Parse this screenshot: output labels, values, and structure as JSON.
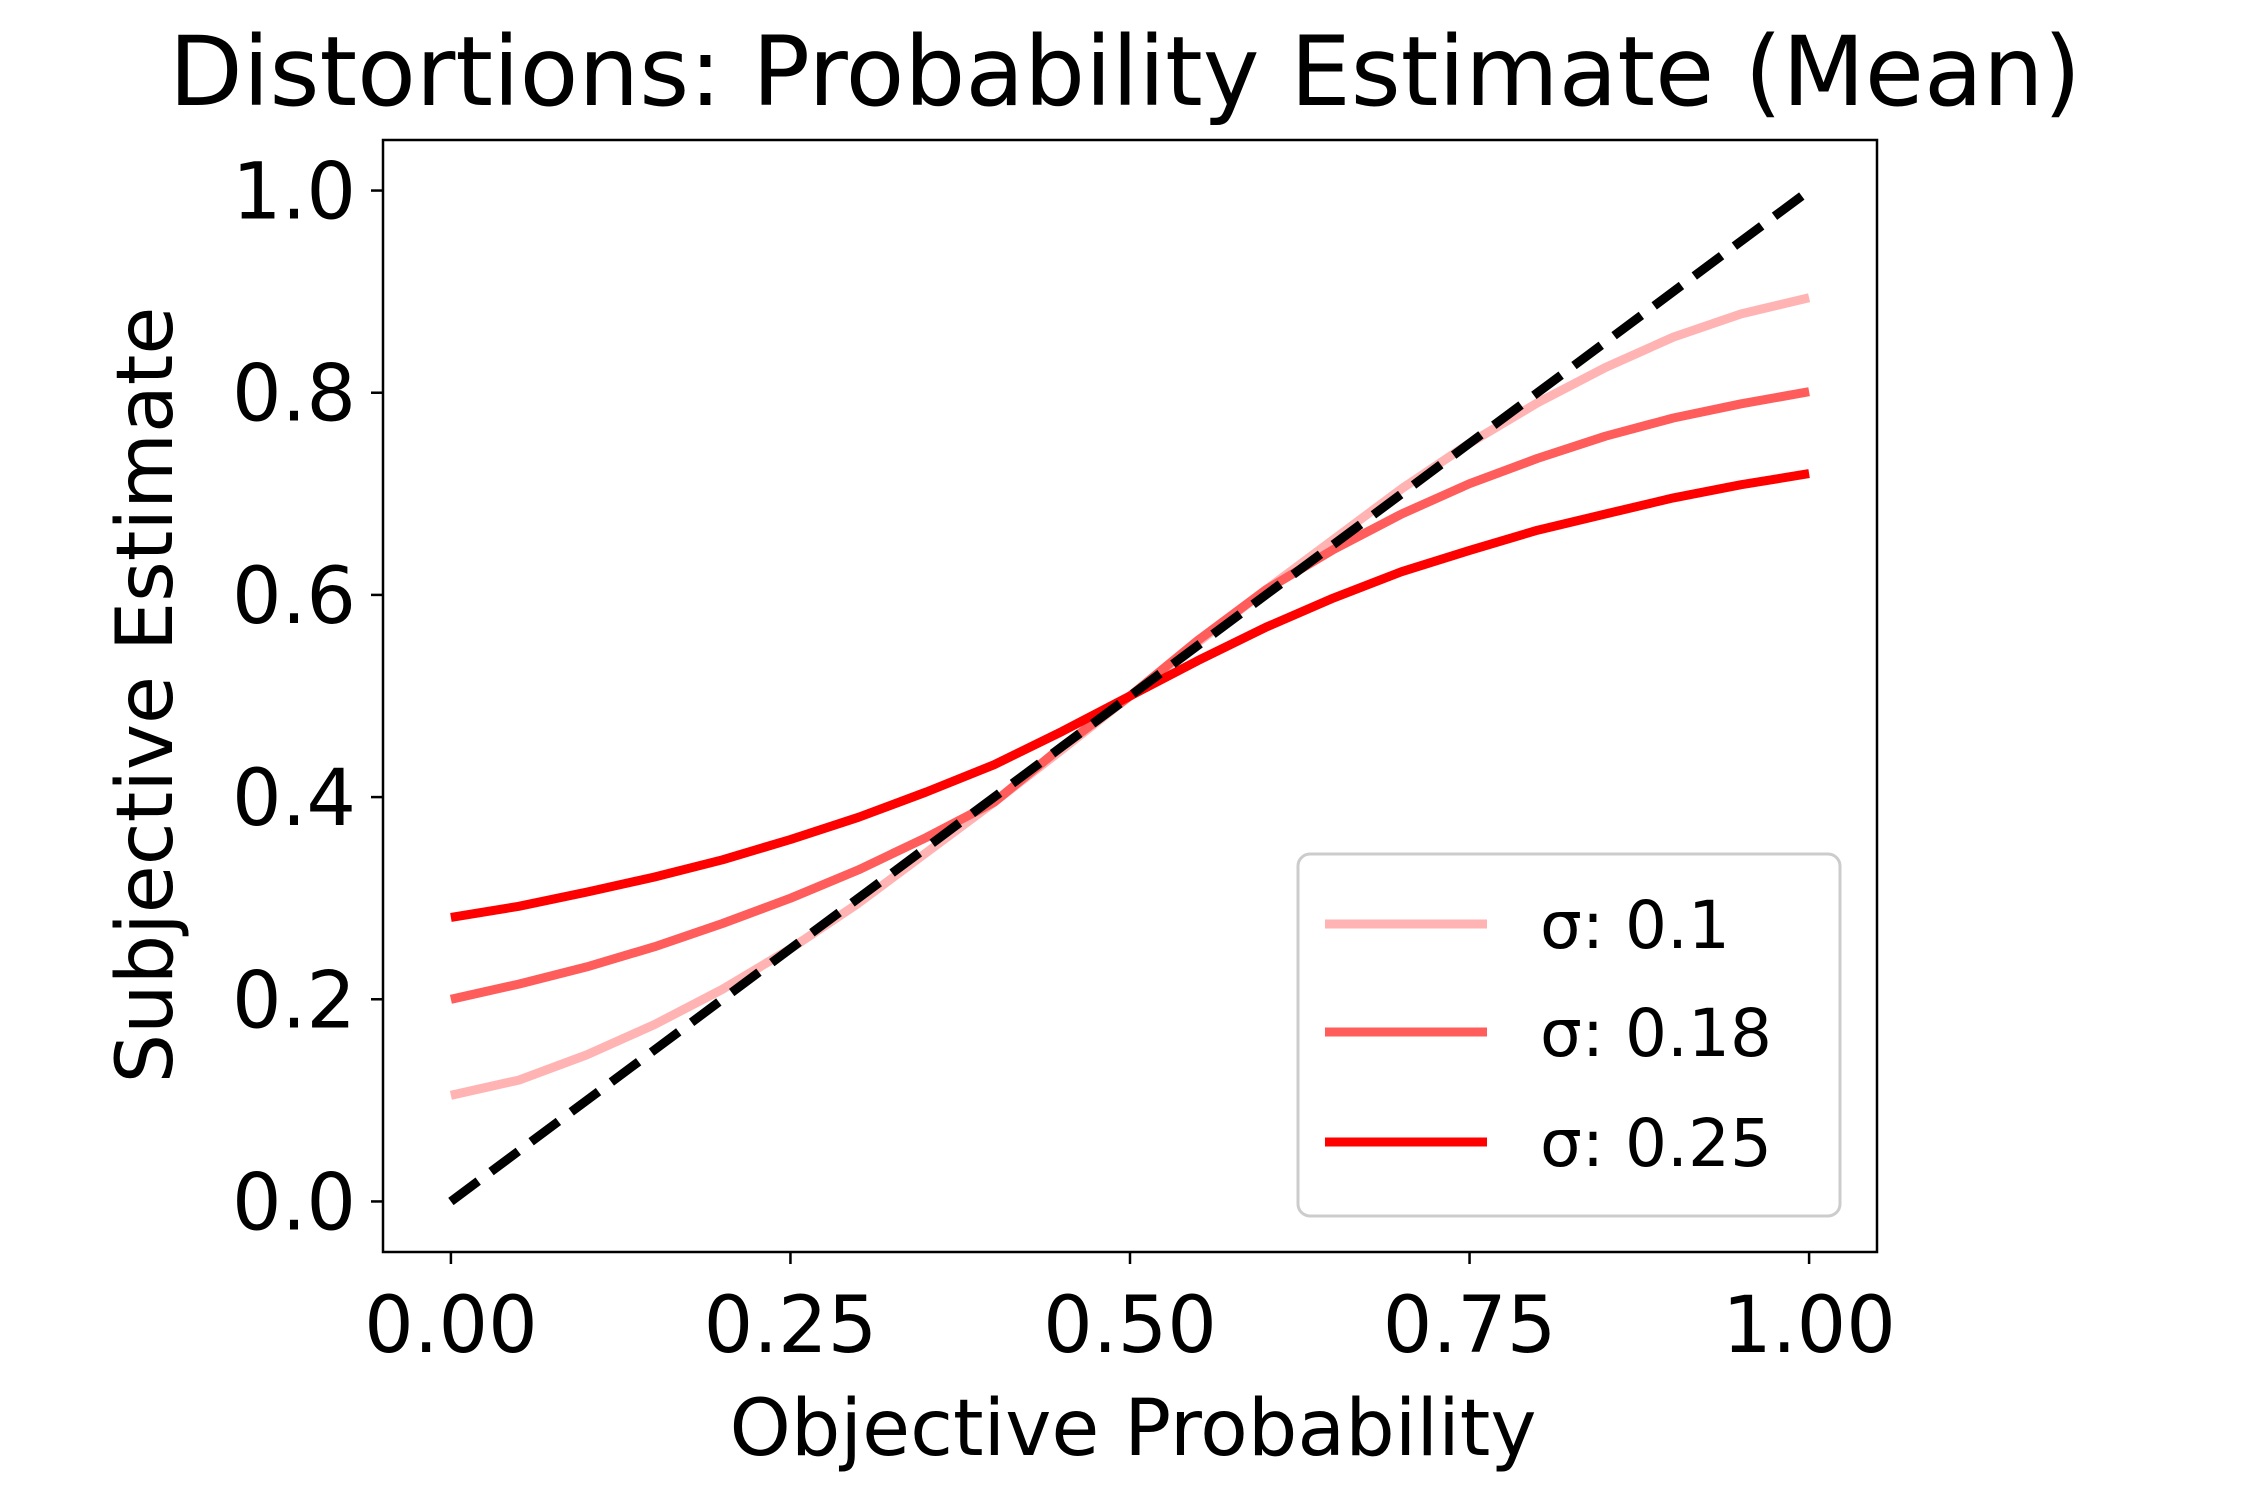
{
  "chart_data": {
    "type": "line",
    "title": "Distortions: Probability Estimate (Mean)",
    "xlabel": "Objective Probability",
    "ylabel": "Subjective Estimate",
    "xlim": [
      -0.05,
      1.05
    ],
    "ylim": [
      -0.05,
      1.05
    ],
    "xticks": [
      0.0,
      0.25,
      0.5,
      0.75,
      1.0
    ],
    "xtick_labels": [
      "0.00",
      "0.25",
      "0.50",
      "0.75",
      "1.00"
    ],
    "yticks": [
      0.0,
      0.2,
      0.4,
      0.6,
      0.8,
      1.0
    ],
    "ytick_labels": [
      "0.0",
      "0.2",
      "0.4",
      "0.6",
      "0.8",
      "1.0"
    ],
    "grid": false,
    "legend_position": "lower-right",
    "reference_line": {
      "style": "dashed",
      "color": "#000000",
      "x": [
        0.0,
        1.0
      ],
      "y": [
        0.0,
        1.0
      ]
    },
    "series": [
      {
        "name": "σ: 0.1",
        "color": "#ffb3b3",
        "x": [
          0.0,
          0.05,
          0.1,
          0.15,
          0.2,
          0.25,
          0.3,
          0.35,
          0.4,
          0.45,
          0.5,
          0.55,
          0.6,
          0.65,
          0.7,
          0.75,
          0.8,
          0.85,
          0.9,
          0.95,
          1.0
        ],
        "y": [
          0.105,
          0.12,
          0.145,
          0.175,
          0.21,
          0.25,
          0.295,
          0.345,
          0.395,
          0.447,
          0.5,
          0.553,
          0.605,
          0.655,
          0.705,
          0.75,
          0.79,
          0.825,
          0.855,
          0.878,
          0.894
        ]
      },
      {
        "name": "σ: 0.18",
        "color": "#ff5c5c",
        "x": [
          0.0,
          0.05,
          0.1,
          0.15,
          0.2,
          0.25,
          0.3,
          0.35,
          0.4,
          0.45,
          0.5,
          0.55,
          0.6,
          0.65,
          0.7,
          0.75,
          0.8,
          0.85,
          0.9,
          0.95,
          1.0
        ],
        "y": [
          0.2,
          0.215,
          0.232,
          0.252,
          0.275,
          0.3,
          0.328,
          0.36,
          0.395,
          0.45,
          0.5,
          0.555,
          0.605,
          0.645,
          0.68,
          0.71,
          0.735,
          0.757,
          0.775,
          0.789,
          0.801
        ]
      },
      {
        "name": "σ: 0.25",
        "color": "#ff0000",
        "x": [
          0.0,
          0.05,
          0.1,
          0.15,
          0.2,
          0.25,
          0.3,
          0.35,
          0.4,
          0.45,
          0.5,
          0.55,
          0.6,
          0.65,
          0.7,
          0.75,
          0.8,
          0.85,
          0.9,
          0.95,
          1.0
        ],
        "y": [
          0.281,
          0.292,
          0.306,
          0.321,
          0.338,
          0.358,
          0.38,
          0.405,
          0.432,
          0.465,
          0.5,
          0.535,
          0.568,
          0.597,
          0.623,
          0.644,
          0.664,
          0.68,
          0.696,
          0.709,
          0.72
        ]
      }
    ]
  }
}
